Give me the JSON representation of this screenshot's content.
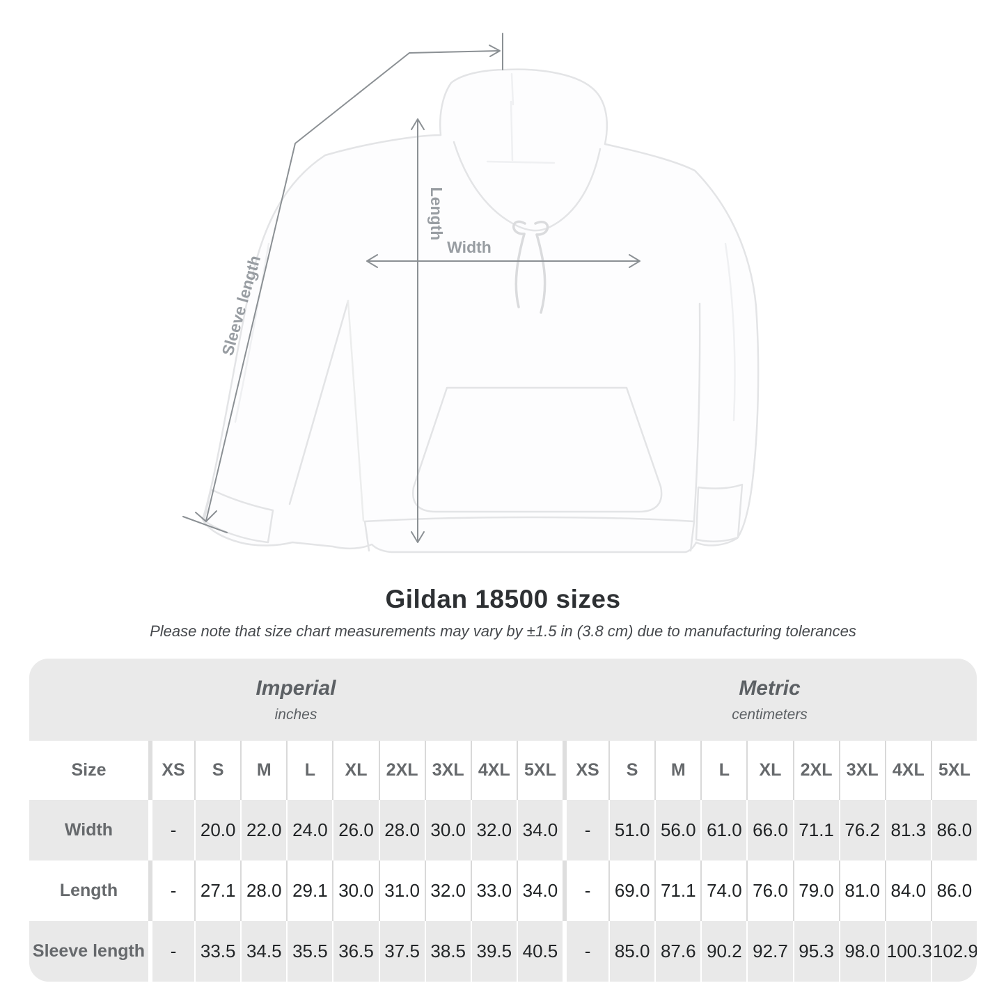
{
  "diagram": {
    "labels": {
      "sleeve_length": "Sleeve length",
      "length": "Length",
      "width": "Width"
    },
    "line_color": "#8b9094",
    "label_color": "#989da2"
  },
  "title": "Gildan 18500 sizes",
  "subtitle": "Please note that size chart measurements may vary by ±1.5 in (3.8 cm) due to manufacturing tolerances",
  "table": {
    "unit_groups": [
      {
        "label": "Imperial",
        "sublabel": "inches"
      },
      {
        "label": "Metric",
        "sublabel": "centimeters"
      }
    ],
    "size_header": "Size",
    "sizes": [
      "XS",
      "S",
      "M",
      "L",
      "XL",
      "2XL",
      "3XL",
      "4XL",
      "5XL"
    ],
    "rows": [
      {
        "label": "Width",
        "imperial": [
          "-",
          "20.0",
          "22.0",
          "24.0",
          "26.0",
          "28.0",
          "30.0",
          "32.0",
          "34.0"
        ],
        "metric": [
          "-",
          "51.0",
          "56.0",
          "61.0",
          "66.0",
          "71.1",
          "76.2",
          "81.3",
          "86.0"
        ]
      },
      {
        "label": "Length",
        "imperial": [
          "-",
          "27.1",
          "28.0",
          "29.1",
          "30.0",
          "31.0",
          "32.0",
          "33.0",
          "34.0"
        ],
        "metric": [
          "-",
          "69.0",
          "71.1",
          "74.0",
          "76.0",
          "79.0",
          "81.0",
          "84.0",
          "86.0"
        ]
      },
      {
        "label": "Sleeve length",
        "imperial": [
          "-",
          "33.5",
          "34.5",
          "35.5",
          "36.5",
          "37.5",
          "38.5",
          "39.5",
          "40.5"
        ],
        "metric": [
          "-",
          "85.0",
          "87.6",
          "90.2",
          "92.7",
          "95.3",
          "98.0",
          "100.3",
          "102.9"
        ]
      }
    ]
  },
  "chart_data": {
    "type": "table",
    "title": "Gildan 18500 sizes",
    "columns": [
      "Size",
      "XS",
      "S",
      "M",
      "L",
      "XL",
      "2XL",
      "3XL",
      "4XL",
      "5XL"
    ],
    "imperial_unit": "inches",
    "metric_unit": "centimeters",
    "rows_imperial": [
      [
        "Width",
        null,
        20.0,
        22.0,
        24.0,
        26.0,
        28.0,
        30.0,
        32.0,
        34.0
      ],
      [
        "Length",
        null,
        27.1,
        28.0,
        29.1,
        30.0,
        31.0,
        32.0,
        33.0,
        34.0
      ],
      [
        "Sleeve length",
        null,
        33.5,
        34.5,
        35.5,
        36.5,
        37.5,
        38.5,
        39.5,
        40.5
      ]
    ],
    "rows_metric": [
      [
        "Width",
        null,
        51.0,
        56.0,
        61.0,
        66.0,
        71.1,
        76.2,
        81.3,
        86.0
      ],
      [
        "Length",
        null,
        69.0,
        71.1,
        74.0,
        76.0,
        79.0,
        81.0,
        84.0,
        86.0
      ],
      [
        "Sleeve length",
        null,
        85.0,
        87.6,
        90.2,
        92.7,
        95.3,
        98.0,
        100.3,
        102.9
      ]
    ]
  }
}
